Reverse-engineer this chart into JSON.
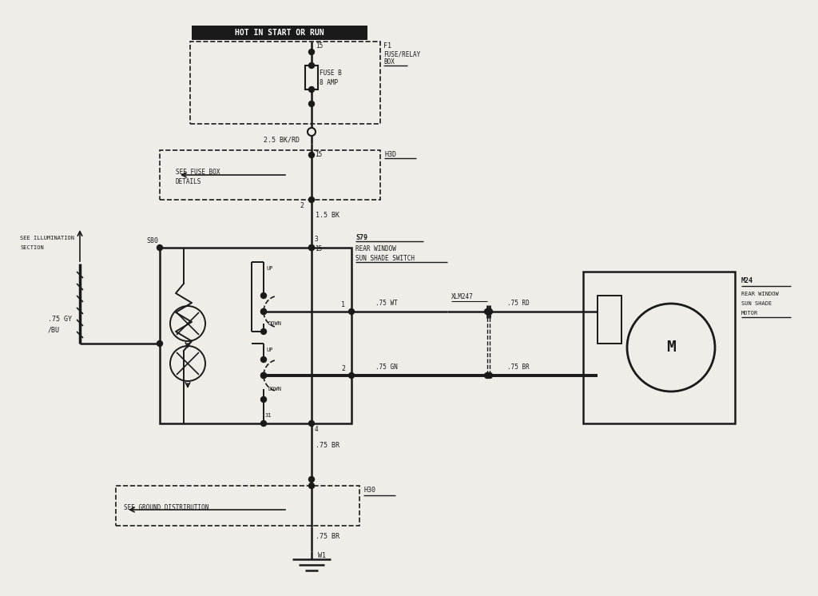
{
  "bg_color": "#f0ede8",
  "line_color": "#1a1a1a",
  "figsize": [
    10.24,
    7.46
  ],
  "dpi": 100,
  "xlim": [
    0,
    1024
  ],
  "ylim": [
    0,
    746
  ]
}
